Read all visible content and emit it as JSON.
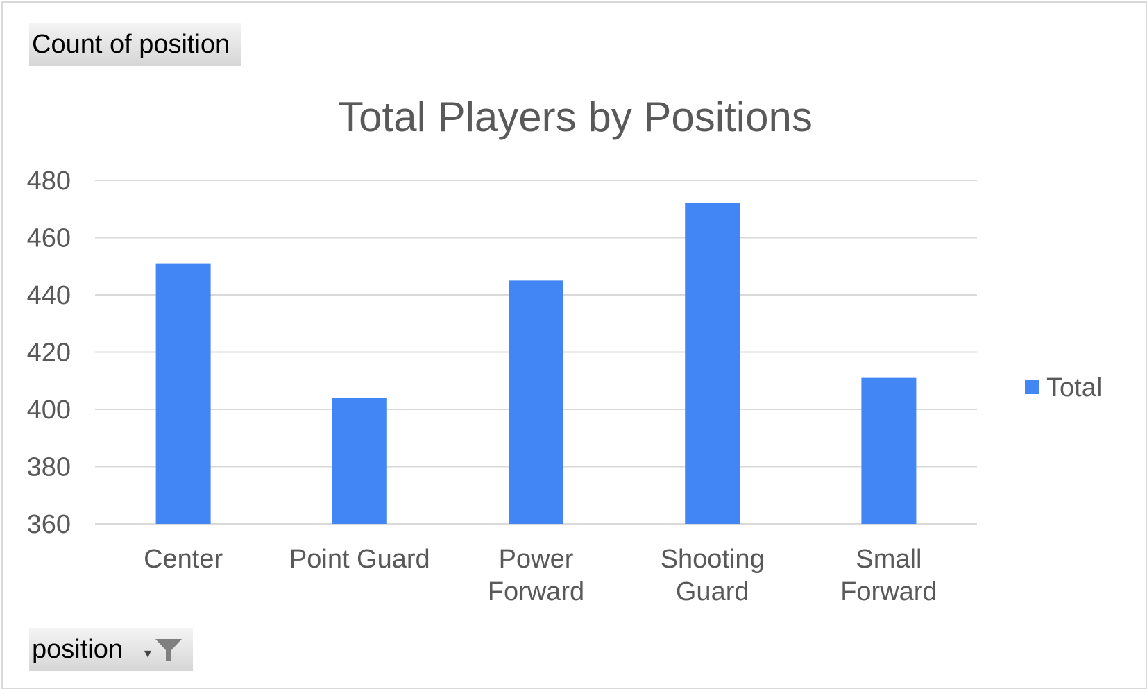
{
  "field_buttons": {
    "value_field": "Count of position",
    "axis_field": "position"
  },
  "icons": {
    "axis_dropdown": "dropdown-arrow-icon",
    "axis_filter": "filter-icon"
  },
  "colors": {
    "bar": "#4285F4",
    "grid": "#d9d9d9",
    "text": "#595959"
  },
  "chart_data": {
    "type": "bar",
    "title": "Total Players by Positions",
    "categories": [
      [
        "Center"
      ],
      [
        "Point Guard"
      ],
      [
        "Power",
        "Forward"
      ],
      [
        "Shooting",
        "Guard"
      ],
      [
        "Small",
        "Forward"
      ]
    ],
    "series": [
      {
        "name": "Total",
        "values": [
          451,
          404,
          445,
          472,
          411
        ]
      }
    ],
    "ylim": [
      360,
      480
    ],
    "yticks": [
      360,
      380,
      400,
      420,
      440,
      460,
      480
    ],
    "grid": true,
    "legend": "right"
  }
}
